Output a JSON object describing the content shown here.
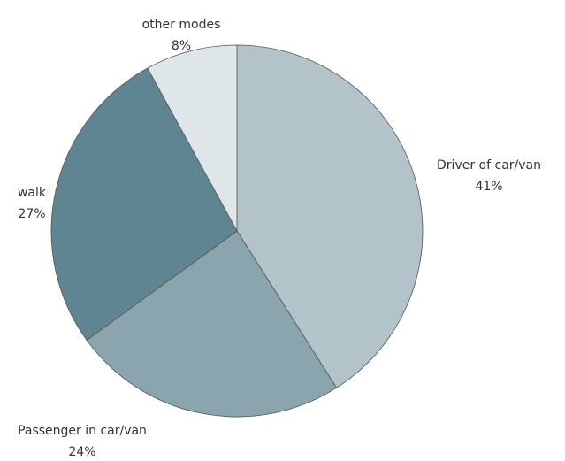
{
  "chart_data": {
    "type": "pie",
    "categories": [
      "Driver of car/van",
      "Passenger in car/van",
      "walk",
      "other modes"
    ],
    "values": [
      41,
      24,
      27,
      8
    ],
    "value_labels": [
      "41%",
      "24%",
      "27%",
      "8%"
    ],
    "colors": [
      "#b2c3c9",
      "#8aa5ad",
      "#5f8593",
      "#dfe6e9"
    ]
  }
}
